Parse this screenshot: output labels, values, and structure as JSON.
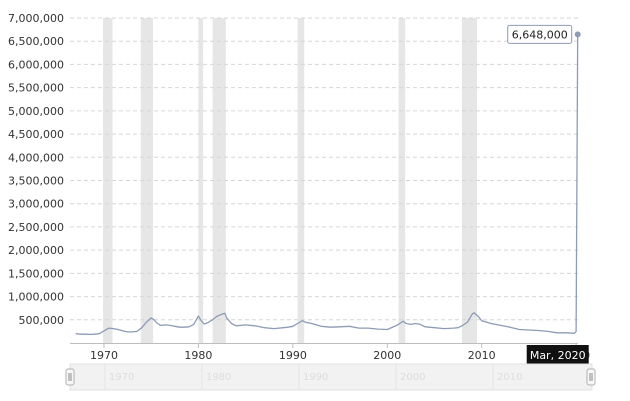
{
  "chart_data": {
    "type": "line",
    "title": "",
    "xlabel": "",
    "ylabel": "",
    "xlim": [
      1966.4,
      2020.2
    ],
    "ylim": [
      0,
      7000000
    ],
    "grid": true,
    "y_ticks": [
      {
        "value": 500000,
        "label": "500,000"
      },
      {
        "value": 1000000,
        "label": "1,000,000"
      },
      {
        "value": 1500000,
        "label": "1,500,000"
      },
      {
        "value": 2000000,
        "label": "2,000,000"
      },
      {
        "value": 2500000,
        "label": "2,500,000"
      },
      {
        "value": 3000000,
        "label": "3,000,000"
      },
      {
        "value": 3500000,
        "label": "3,500,000"
      },
      {
        "value": 4000000,
        "label": "4,000,000"
      },
      {
        "value": 4500000,
        "label": "4,500,000"
      },
      {
        "value": 5000000,
        "label": "5,000,000"
      },
      {
        "value": 5500000,
        "label": "5,500,000"
      },
      {
        "value": 6000000,
        "label": "6,000,000"
      },
      {
        "value": 6500000,
        "label": "6,500,000"
      },
      {
        "value": 7000000,
        "label": "7,000,000"
      }
    ],
    "x_ticks": [
      {
        "value": 1970,
        "label": "1970"
      },
      {
        "value": 1980,
        "label": "1980"
      },
      {
        "value": 1990,
        "label": "1990"
      },
      {
        "value": 2000,
        "label": "2000"
      },
      {
        "value": 2010,
        "label": "2010"
      },
      {
        "value": 2020,
        "label": "2020"
      }
    ],
    "recessions": [
      [
        1969.9,
        1970.9
      ],
      [
        1973.9,
        1975.2
      ],
      [
        1980.0,
        1980.5
      ],
      [
        1981.5,
        1982.9
      ],
      [
        1990.5,
        1991.2
      ],
      [
        2001.2,
        2001.9
      ],
      [
        2007.9,
        2009.5
      ]
    ],
    "series": [
      {
        "color": "#8e9bb5",
        "x": [
          1967.0,
          1967.5,
          1968.0,
          1968.5,
          1969.0,
          1969.5,
          1970.0,
          1970.5,
          1971.0,
          1971.5,
          1972.0,
          1972.5,
          1973.0,
          1973.5,
          1974.0,
          1974.5,
          1975.0,
          1975.3,
          1975.6,
          1976.0,
          1976.5,
          1977.0,
          1977.5,
          1978.0,
          1978.5,
          1979.0,
          1979.5,
          1980.0,
          1980.3,
          1980.6,
          1981.0,
          1981.5,
          1982.0,
          1982.5,
          1982.8,
          1983.0,
          1983.5,
          1984.0,
          1985.0,
          1986.0,
          1987.0,
          1988.0,
          1989.0,
          1989.5,
          1990.0,
          1990.5,
          1991.0,
          1991.3,
          1992.0,
          1993.0,
          1994.0,
          1995.0,
          1996.0,
          1997.0,
          1998.0,
          1999.0,
          2000.0,
          2001.0,
          2001.3,
          2001.7,
          2002.0,
          2002.5,
          2003.0,
          2003.5,
          2004.0,
          2005.0,
          2006.0,
          2007.0,
          2007.5,
          2008.0,
          2008.5,
          2009.0,
          2009.2,
          2009.6,
          2010.0,
          2011.0,
          2012.0,
          2013.0,
          2014.0,
          2015.0,
          2016.0,
          2017.0,
          2018.0,
          2019.0,
          2019.8,
          2020.0,
          2020.17
        ],
        "y": [
          200000,
          190000,
          190000,
          185000,
          190000,
          200000,
          260000,
          320000,
          310000,
          290000,
          260000,
          240000,
          240000,
          250000,
          330000,
          450000,
          540000,
          500000,
          430000,
          380000,
          390000,
          380000,
          360000,
          340000,
          340000,
          350000,
          400000,
          580000,
          480000,
          410000,
          440000,
          500000,
          580000,
          620000,
          640000,
          540000,
          420000,
          370000,
          390000,
          370000,
          330000,
          310000,
          330000,
          340000,
          360000,
          420000,
          480000,
          450000,
          420000,
          360000,
          340000,
          350000,
          360000,
          320000,
          320000,
          300000,
          290000,
          380000,
          420000,
          470000,
          420000,
          400000,
          420000,
          400000,
          350000,
          330000,
          310000,
          320000,
          330000,
          380000,
          450000,
          620000,
          650000,
          580000,
          480000,
          420000,
          380000,
          340000,
          290000,
          280000,
          270000,
          250000,
          220000,
          220000,
          210000,
          250000,
          6648000
        ]
      }
    ],
    "callout": {
      "label": "6,648,000",
      "x": 2020.17,
      "y": 6648000
    },
    "tooltip": {
      "label": "Mar, 2020",
      "x": 2020.17
    }
  },
  "navigator": {
    "labels": [
      {
        "value": 1970,
        "label": "1970"
      },
      {
        "value": 1980,
        "label": "1980"
      },
      {
        "value": 1990,
        "label": "1990"
      },
      {
        "value": 2000,
        "label": "2000"
      },
      {
        "value": 2010,
        "label": "2010"
      }
    ]
  }
}
